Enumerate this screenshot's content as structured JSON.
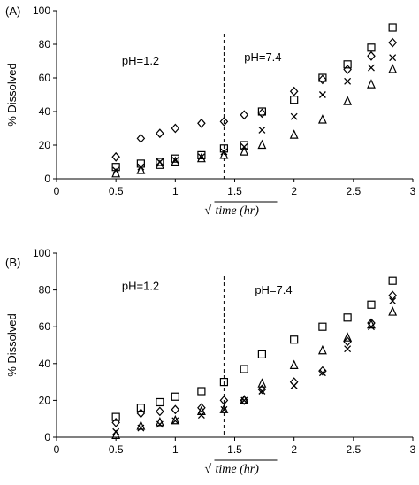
{
  "chart_data": [
    {
      "type": "scatter",
      "panel_label": "(A)",
      "ylabel": "% Dissolved",
      "xlabel": "time (hr)",
      "xlabel_radical": "√",
      "xlim": [
        0,
        3
      ],
      "ylim": [
        0,
        100
      ],
      "xticks": [
        "0",
        "0.5",
        "1",
        "1.5",
        "2",
        "2.5",
        "3"
      ],
      "yticks": [
        "0",
        "20",
        "40",
        "60",
        "80",
        "100"
      ],
      "grid": false,
      "divider_x": 1.41,
      "annotations": [
        {
          "text": "pH=1.2",
          "x": 0.55,
          "y": 68
        },
        {
          "text": "pH=7.4",
          "x": 1.58,
          "y": 70
        }
      ],
      "x": [
        0.5,
        0.71,
        0.87,
        1.0,
        1.22,
        1.41,
        1.58,
        1.73,
        2.0,
        2.24,
        2.45,
        2.65,
        2.83
      ],
      "series": [
        {
          "marker": "diamond",
          "values": [
            13,
            24,
            27,
            30,
            33,
            34,
            38,
            39,
            52,
            59,
            65,
            73,
            81
          ]
        },
        {
          "marker": "square",
          "values": [
            7,
            9,
            10,
            12,
            14,
            18,
            20,
            40,
            47,
            60,
            68,
            78,
            90
          ]
        },
        {
          "marker": "cross",
          "values": [
            5,
            7,
            10,
            11,
            13,
            16,
            19,
            29,
            37,
            50,
            58,
            66,
            72
          ]
        },
        {
          "marker": "triangle",
          "values": [
            3,
            5,
            8,
            10,
            12,
            14,
            16,
            20,
            26,
            35,
            46,
            56,
            65
          ]
        }
      ]
    },
    {
      "type": "scatter",
      "panel_label": "(B)",
      "ylabel": "% Dissolved",
      "xlabel": "time (hr)",
      "xlabel_radical": "√",
      "xlim": [
        0,
        3
      ],
      "ylim": [
        0,
        100
      ],
      "xticks": [
        "0",
        "0.5",
        "1",
        "1.5",
        "2",
        "2.5",
        "3"
      ],
      "yticks": [
        "0",
        "20",
        "40",
        "60",
        "80",
        "100"
      ],
      "grid": false,
      "divider_x": 1.41,
      "annotations": [
        {
          "text": "pH=1.2",
          "x": 0.55,
          "y": 80
        },
        {
          "text": "pH=7.4",
          "x": 1.67,
          "y": 78
        }
      ],
      "x": [
        0.5,
        0.71,
        0.87,
        1.0,
        1.22,
        1.41,
        1.58,
        1.73,
        2.0,
        2.24,
        2.45,
        2.65,
        2.83
      ],
      "series": [
        {
          "marker": "diamond",
          "values": [
            8,
            13,
            14,
            15,
            16,
            20,
            20,
            26,
            30,
            36,
            52,
            62,
            77
          ]
        },
        {
          "marker": "square",
          "values": [
            11,
            16,
            19,
            22,
            25,
            30,
            37,
            45,
            53,
            60,
            65,
            72,
            85
          ]
        },
        {
          "marker": "cross",
          "values": [
            3,
            5,
            7,
            9,
            12,
            15,
            20,
            25,
            28,
            35,
            48,
            60,
            74
          ]
        },
        {
          "marker": "triangle",
          "values": [
            1,
            6,
            8,
            9,
            14,
            15,
            20,
            29,
            39,
            47,
            54,
            61,
            68
          ]
        }
      ]
    }
  ]
}
